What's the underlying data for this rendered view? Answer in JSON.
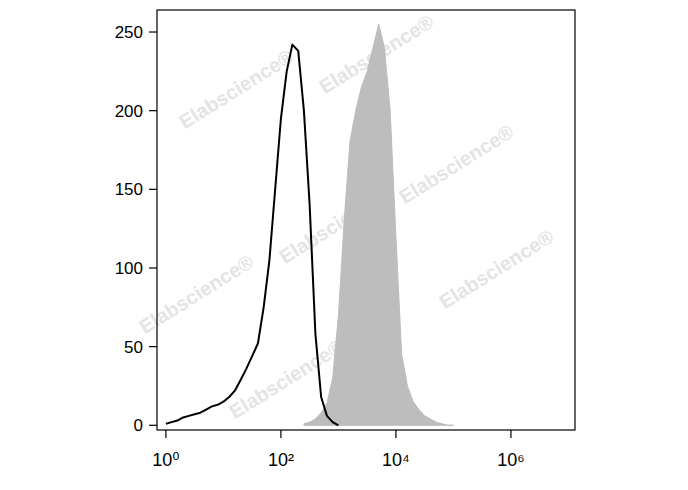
{
  "chart_data": {
    "type": "line",
    "log": "x",
    "annotations": [
      "Elabscience®"
    ],
    "xlim": [
      0.7,
      13000000
    ],
    "ylim": [
      -3,
      264
    ],
    "xticks": [
      {
        "value": 1,
        "label": "10⁰"
      },
      {
        "value": 100,
        "label": "10²"
      },
      {
        "value": 10000,
        "label": "10⁴"
      },
      {
        "value": 1000000,
        "label": "10⁶"
      }
    ],
    "yticks": [
      0,
      50,
      100,
      150,
      200,
      250
    ],
    "series": [
      {
        "type": "area",
        "color": "#bdbdbd",
        "x": [
          251,
          316,
          398,
          501,
          631,
          794,
          1000,
          1259,
          1585,
          1995,
          2512,
          3162,
          3981,
          5012,
          6310,
          7943,
          10000,
          12589,
          15849,
          19953,
          25119,
          31623,
          39811,
          50119,
          63096,
          79433,
          100000
        ],
        "values": [
          1,
          2,
          4,
          8,
          14,
          30,
          70,
          130,
          180,
          200,
          215,
          225,
          240,
          255,
          240,
          200,
          120,
          45,
          25,
          15,
          10,
          6,
          4,
          2,
          1,
          0,
          0
        ]
      },
      {
        "type": "line",
        "color": "#000000",
        "x": [
          1,
          1.26,
          1.58,
          2,
          2.51,
          3.16,
          3.98,
          5.01,
          6.31,
          7.94,
          10,
          12.6,
          15.8,
          20,
          25.1,
          31.6,
          39.8,
          50.1,
          63.1,
          79.4,
          100,
          126,
          158,
          200,
          251,
          316,
          398,
          501,
          631,
          794,
          1000
        ],
        "values": [
          1,
          2,
          3,
          5,
          6,
          7,
          8,
          10,
          12,
          13,
          15,
          18,
          22,
          29,
          36,
          44,
          52,
          75,
          105,
          150,
          195,
          225,
          242,
          238,
          200,
          140,
          58,
          18,
          6,
          2,
          0
        ]
      }
    ]
  }
}
